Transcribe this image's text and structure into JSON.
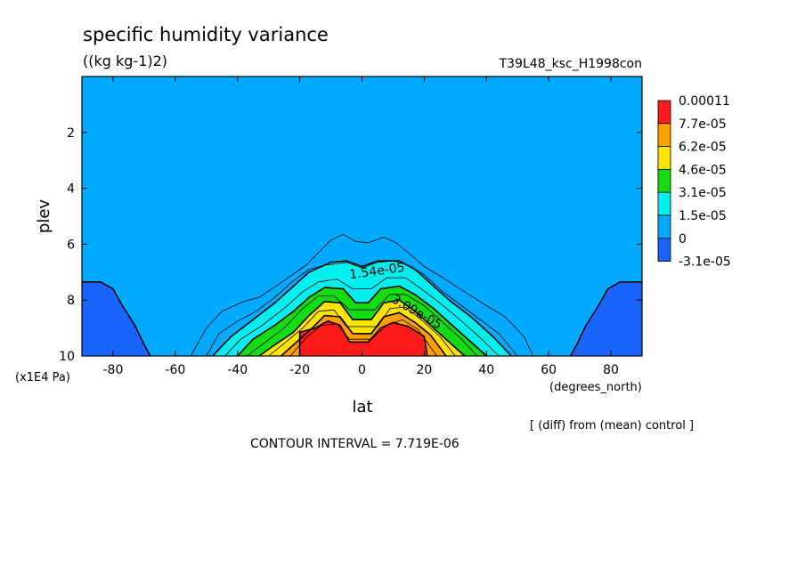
{
  "chart_data": {
    "type": "contour",
    "title": "specific humidity variance",
    "units": "((kg kg-1)2)",
    "experiment": "T39L48_ksc_H1998con",
    "xlabel": "lat",
    "x_units": "(degrees_north)",
    "ylabel": "plev",
    "y_units": "(x1E4 Pa)",
    "xlim": [
      -90,
      90
    ],
    "ylim": [
      10,
      0
    ],
    "x_ticks": [
      -80,
      -60,
      -40,
      -20,
      0,
      20,
      40,
      60,
      80
    ],
    "x_tick_labels": [
      "-80",
      "-60",
      "-40",
      "-20",
      "0",
      "20",
      "40",
      "60",
      "80"
    ],
    "y_ticks": [
      2,
      4,
      6,
      8,
      10
    ],
    "y_tick_labels": [
      "2",
      "4",
      "6",
      "8",
      "10"
    ],
    "note": "[ (diff) from (mean) control ]",
    "contour_interval": "CONTOUR INTERVAL = 7.719E-06",
    "contour_labels": [
      {
        "text": "1.54e-05",
        "lat": 5,
        "plev": 7.1,
        "angle": -8
      },
      {
        "text": "3.09e-05",
        "lat": 17,
        "plev": 8.55,
        "angle": 30
      }
    ],
    "colorbar": {
      "labels": [
        "0.00011",
        "7.7e-05",
        "6.2e-05",
        "4.6e-05",
        "3.1e-05",
        "1.5e-05",
        "0",
        "-3.1e-05"
      ],
      "colors": [
        "#ff1a1a",
        "#ff9f00",
        "#ffe400",
        "#14dc14",
        "#00f0f0",
        "#00aaff",
        "#1a64ff"
      ]
    },
    "fill_regions": [
      {
        "name": "negative-polar-south",
        "color": "#1a64ff",
        "points": [
          [
            -90,
            10
          ],
          [
            -90,
            7.35
          ],
          [
            -84,
            7.35
          ],
          [
            -80,
            7.6
          ],
          [
            -77,
            8.2
          ],
          [
            -73,
            8.9
          ],
          [
            -70,
            9.6
          ],
          [
            -68,
            10
          ]
        ]
      },
      {
        "name": "negative-polar-north",
        "color": "#1a64ff",
        "points": [
          [
            90,
            10
          ],
          [
            90,
            7.35
          ],
          [
            83,
            7.35
          ],
          [
            79,
            7.6
          ],
          [
            76,
            8.2
          ],
          [
            72,
            8.9
          ],
          [
            69,
            9.6
          ],
          [
            67,
            10
          ]
        ]
      },
      {
        "name": "level-1.5e-05",
        "color": "#00f0f0",
        "points": [
          [
            -48,
            10
          ],
          [
            -42,
            9.3
          ],
          [
            -35,
            8.7
          ],
          [
            -28,
            8.1
          ],
          [
            -22,
            7.5
          ],
          [
            -17,
            7.0
          ],
          [
            -10,
            6.65
          ],
          [
            -5,
            6.6
          ],
          [
            0,
            6.8
          ],
          [
            5,
            6.6
          ],
          [
            12,
            6.6
          ],
          [
            17,
            6.9
          ],
          [
            22,
            7.4
          ],
          [
            28,
            8.0
          ],
          [
            35,
            8.6
          ],
          [
            42,
            9.3
          ],
          [
            48,
            10
          ]
        ]
      },
      {
        "name": "level-3.1e-05",
        "color": "#14dc14",
        "points": [
          [
            -40,
            10
          ],
          [
            -35,
            9.4
          ],
          [
            -28,
            8.9
          ],
          [
            -22,
            8.4
          ],
          [
            -17,
            7.9
          ],
          [
            -12,
            7.55
          ],
          [
            -6,
            7.6
          ],
          [
            -2,
            8.1
          ],
          [
            2,
            8.1
          ],
          [
            6,
            7.6
          ],
          [
            12,
            7.5
          ],
          [
            17,
            7.8
          ],
          [
            23,
            8.3
          ],
          [
            30,
            9.0
          ],
          [
            36,
            9.6
          ],
          [
            40,
            10
          ]
        ]
      },
      {
        "name": "level-4.6e-05",
        "color": "#ffe400",
        "points": [
          [
            -33,
            10
          ],
          [
            -28,
            9.6
          ],
          [
            -22,
            9.15
          ],
          [
            -17,
            8.55
          ],
          [
            -12,
            8.05
          ],
          [
            -7,
            8.1
          ],
          [
            -3,
            8.7
          ],
          [
            3,
            8.7
          ],
          [
            7,
            8.1
          ],
          [
            12,
            8.0
          ],
          [
            17,
            8.4
          ],
          [
            22,
            8.9
          ],
          [
            28,
            9.5
          ],
          [
            33,
            10
          ]
        ]
      },
      {
        "name": "level-6.2e-05",
        "color": "#ff9f00",
        "points": [
          [
            -26,
            10
          ],
          [
            -21,
            9.5
          ],
          [
            -16,
            9.0
          ],
          [
            -12,
            8.55
          ],
          [
            -7,
            8.6
          ],
          [
            -3,
            9.2
          ],
          [
            3,
            9.2
          ],
          [
            7,
            8.6
          ],
          [
            12,
            8.45
          ],
          [
            17,
            8.8
          ],
          [
            22,
            9.25
          ],
          [
            27,
            10
          ]
        ]
      },
      {
        "name": "level-7.7e-05",
        "color": "#ff1a1a",
        "points": [
          [
            -20,
            10
          ],
          [
            -20,
            9.15
          ],
          [
            -15,
            9.0
          ],
          [
            -11,
            8.75
          ],
          [
            -7,
            8.9
          ],
          [
            -4,
            9.5
          ],
          [
            2,
            9.5
          ],
          [
            6,
            9.0
          ],
          [
            10,
            8.8
          ],
          [
            15,
            8.95
          ],
          [
            20,
            9.3
          ],
          [
            21,
            10
          ]
        ]
      }
    ],
    "contour_lines": [
      {
        "name": "contour-zero",
        "width": 0.8,
        "points": [
          [
            -55,
            10
          ],
          [
            -50,
            9.0
          ],
          [
            -45,
            8.4
          ],
          [
            -38,
            8.05
          ],
          [
            -33,
            7.9
          ],
          [
            -25,
            7.3
          ],
          [
            -18,
            6.75
          ],
          [
            -14,
            6.3
          ],
          [
            -10,
            5.85
          ],
          [
            -6,
            5.65
          ],
          [
            -2,
            5.9
          ],
          [
            2,
            5.95
          ],
          [
            7,
            5.75
          ],
          [
            11,
            5.95
          ],
          [
            16,
            6.4
          ],
          [
            20,
            6.8
          ],
          [
            26,
            7.2
          ],
          [
            33,
            7.7
          ],
          [
            40,
            8.2
          ],
          [
            46,
            8.6
          ],
          [
            52,
            9.3
          ],
          [
            55,
            10
          ]
        ]
      },
      {
        "name": "contour-0.77e-05",
        "width": 0.8,
        "points": [
          [
            -50,
            10
          ],
          [
            -46,
            9.2
          ],
          [
            -40,
            8.75
          ],
          [
            -34,
            8.4
          ],
          [
            -28,
            7.9
          ],
          [
            -22,
            7.3
          ],
          [
            -17,
            6.9
          ],
          [
            -12,
            6.75
          ],
          [
            -8,
            6.7
          ],
          [
            -5,
            6.65
          ],
          [
            0,
            6.85
          ],
          [
            5,
            6.65
          ],
          [
            10,
            6.6
          ],
          [
            15,
            6.75
          ],
          [
            20,
            7.1
          ],
          [
            26,
            7.7
          ],
          [
            32,
            8.2
          ],
          [
            38,
            8.7
          ],
          [
            44,
            9.2
          ],
          [
            50,
            10
          ]
        ]
      },
      {
        "name": "contour-1.54e-05",
        "width": 1.6,
        "points": [
          [
            -48,
            10
          ],
          [
            -42,
            9.3
          ],
          [
            -35,
            8.7
          ],
          [
            -28,
            8.1
          ],
          [
            -22,
            7.5
          ],
          [
            -17,
            7.0
          ],
          [
            -10,
            6.65
          ],
          [
            -5,
            6.6
          ],
          [
            0,
            6.8
          ],
          [
            5,
            6.6
          ],
          [
            12,
            6.6
          ],
          [
            17,
            6.9
          ],
          [
            22,
            7.4
          ],
          [
            28,
            8.0
          ],
          [
            35,
            8.6
          ],
          [
            42,
            9.3
          ],
          [
            48,
            10
          ]
        ]
      },
      {
        "name": "contour-2.3e-05",
        "width": 0.8,
        "points": [
          [
            -44,
            10
          ],
          [
            -39,
            9.4
          ],
          [
            -32,
            8.9
          ],
          [
            -25,
            8.3
          ],
          [
            -19,
            7.7
          ],
          [
            -14,
            7.35
          ],
          [
            -8,
            7.25
          ],
          [
            -3,
            7.6
          ],
          [
            3,
            7.6
          ],
          [
            8,
            7.2
          ],
          [
            14,
            7.2
          ],
          [
            19,
            7.6
          ],
          [
            25,
            8.1
          ],
          [
            32,
            8.75
          ],
          [
            38,
            9.35
          ],
          [
            44,
            10
          ]
        ]
      },
      {
        "name": "contour-3.09e-05",
        "width": 1.6,
        "points": [
          [
            -40,
            10
          ],
          [
            -35,
            9.4
          ],
          [
            -28,
            8.9
          ],
          [
            -22,
            8.4
          ],
          [
            -17,
            7.9
          ],
          [
            -12,
            7.55
          ],
          [
            -6,
            7.6
          ],
          [
            -2,
            8.1
          ],
          [
            2,
            8.1
          ],
          [
            6,
            7.6
          ],
          [
            12,
            7.5
          ],
          [
            17,
            7.8
          ],
          [
            23,
            8.3
          ],
          [
            30,
            9.0
          ],
          [
            36,
            9.6
          ],
          [
            40,
            10
          ]
        ]
      },
      {
        "name": "contour-3.86e-05",
        "width": 0.8,
        "points": [
          [
            -37,
            10
          ],
          [
            -31,
            9.5
          ],
          [
            -25,
            9.0
          ],
          [
            -19,
            8.3
          ],
          [
            -14,
            7.85
          ],
          [
            -9,
            7.85
          ],
          [
            -4,
            8.35
          ],
          [
            4,
            8.35
          ],
          [
            9,
            7.8
          ],
          [
            14,
            7.8
          ],
          [
            20,
            8.2
          ],
          [
            26,
            8.8
          ],
          [
            32,
            9.4
          ],
          [
            37,
            10
          ]
        ]
      },
      {
        "name": "contour-4.63e-05",
        "width": 1.6,
        "points": [
          [
            -33,
            10
          ],
          [
            -28,
            9.6
          ],
          [
            -22,
            9.15
          ],
          [
            -17,
            8.55
          ],
          [
            -12,
            8.05
          ],
          [
            -7,
            8.1
          ],
          [
            -3,
            8.7
          ],
          [
            3,
            8.7
          ],
          [
            7,
            8.1
          ],
          [
            12,
            8.0
          ],
          [
            17,
            8.4
          ],
          [
            22,
            8.9
          ],
          [
            28,
            9.5
          ],
          [
            33,
            10
          ]
        ]
      },
      {
        "name": "contour-5.4e-05",
        "width": 0.8,
        "points": [
          [
            -30,
            10
          ],
          [
            -25,
            9.55
          ],
          [
            -19,
            9.0
          ],
          [
            -14,
            8.4
          ],
          [
            -9,
            8.35
          ],
          [
            -5,
            8.95
          ],
          [
            5,
            8.95
          ],
          [
            9,
            8.3
          ],
          [
            14,
            8.25
          ],
          [
            19,
            8.7
          ],
          [
            25,
            9.3
          ],
          [
            30,
            10
          ]
        ]
      },
      {
        "name": "contour-6.17e-05",
        "width": 1.6,
        "points": [
          [
            -26,
            10
          ],
          [
            -21,
            9.5
          ],
          [
            -16,
            9.0
          ],
          [
            -12,
            8.55
          ],
          [
            -7,
            8.6
          ],
          [
            -3,
            9.2
          ],
          [
            3,
            9.2
          ],
          [
            7,
            8.6
          ],
          [
            12,
            8.45
          ],
          [
            17,
            8.8
          ],
          [
            22,
            9.25
          ],
          [
            27,
            10
          ]
        ]
      },
      {
        "name": "contour-6.95e-05",
        "width": 0.8,
        "points": [
          [
            -23,
            10
          ],
          [
            -18,
            9.35
          ],
          [
            -13,
            8.9
          ],
          [
            -8,
            8.85
          ],
          [
            -4,
            9.4
          ],
          [
            3,
            9.4
          ],
          [
            8,
            8.9
          ],
          [
            13,
            8.7
          ],
          [
            18,
            9.05
          ],
          [
            24,
            10
          ]
        ]
      },
      {
        "name": "contour-7.72e-05",
        "width": 1.6,
        "points": [
          [
            -20,
            10
          ],
          [
            -20,
            9.15
          ],
          [
            -15,
            9.0
          ],
          [
            -11,
            8.75
          ],
          [
            -7,
            8.9
          ],
          [
            -4,
            9.5
          ],
          [
            2,
            9.5
          ],
          [
            6,
            9.0
          ],
          [
            10,
            8.8
          ],
          [
            15,
            8.95
          ],
          [
            20,
            9.3
          ],
          [
            21,
            10
          ]
        ]
      },
      {
        "name": "contour-negative-south",
        "width": 1.6,
        "points": [
          [
            -90,
            7.35
          ],
          [
            -84,
            7.35
          ],
          [
            -80,
            7.6
          ],
          [
            -77,
            8.2
          ],
          [
            -73,
            8.9
          ],
          [
            -70,
            9.6
          ],
          [
            -68,
            10
          ]
        ]
      },
      {
        "name": "contour-negative-north",
        "width": 1.6,
        "points": [
          [
            90,
            7.35
          ],
          [
            83,
            7.35
          ],
          [
            79,
            7.6
          ],
          [
            76,
            8.2
          ],
          [
            72,
            8.9
          ],
          [
            69,
            9.6
          ],
          [
            67,
            10
          ]
        ]
      }
    ],
    "background_color": "#00aaff"
  }
}
